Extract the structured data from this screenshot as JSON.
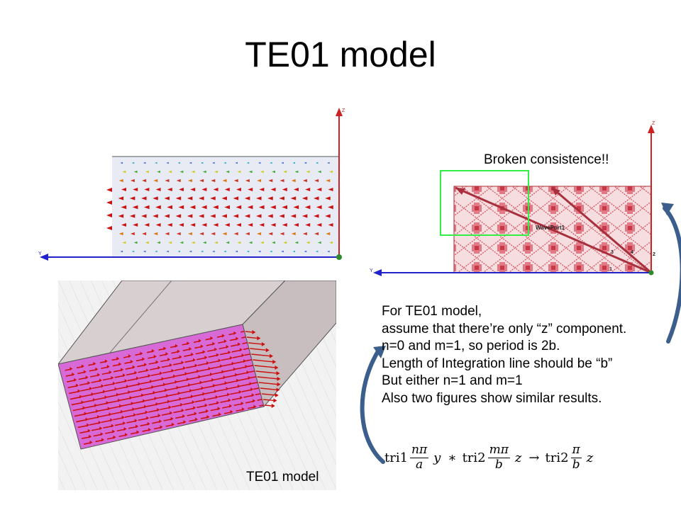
{
  "slide": {
    "title": "TE01 model",
    "callout": "Broken consistence!!",
    "caption": "TE01 model",
    "body_lines": [
      "For TE01 model,",
      "assume that there’re only “z” component.",
      "n=0 and m=1, so period is 2b.",
      "Length of Integration line should be “b”",
      "But either n=1 and m=1",
      "Also two figures show similar results."
    ],
    "formula": {
      "t1": "tri1",
      "f1_num": "nπ",
      "f1_den": "a",
      "v1": "y",
      "star": "∗",
      "t2": "tri2",
      "f2_num": "mπ",
      "f2_den": "b",
      "v2": "z",
      "arrow": "→",
      "t3": "tri2",
      "f3_num": "π",
      "f3_den": "b",
      "v3": "z"
    }
  },
  "figure_left": {
    "axis_z": "Z",
    "axis_y": "Y"
  },
  "figure_right": {
    "axis_z": "Z",
    "axis_y": "Y",
    "port_label": "WavePort1",
    "line_labels": [
      "1",
      "2",
      "3",
      "4"
    ]
  },
  "colors": {
    "axis": "#cc2222",
    "axis_y": "#2222cc",
    "field_arrow": "#cc1111",
    "pattern": "#d44d5a",
    "highlight": "#33ee44",
    "plane": "#d86ad8",
    "callout_arrow": "#3b5e8c"
  },
  "icons": [
    "origin-marker-icon",
    "curved-arrow-icon"
  ]
}
